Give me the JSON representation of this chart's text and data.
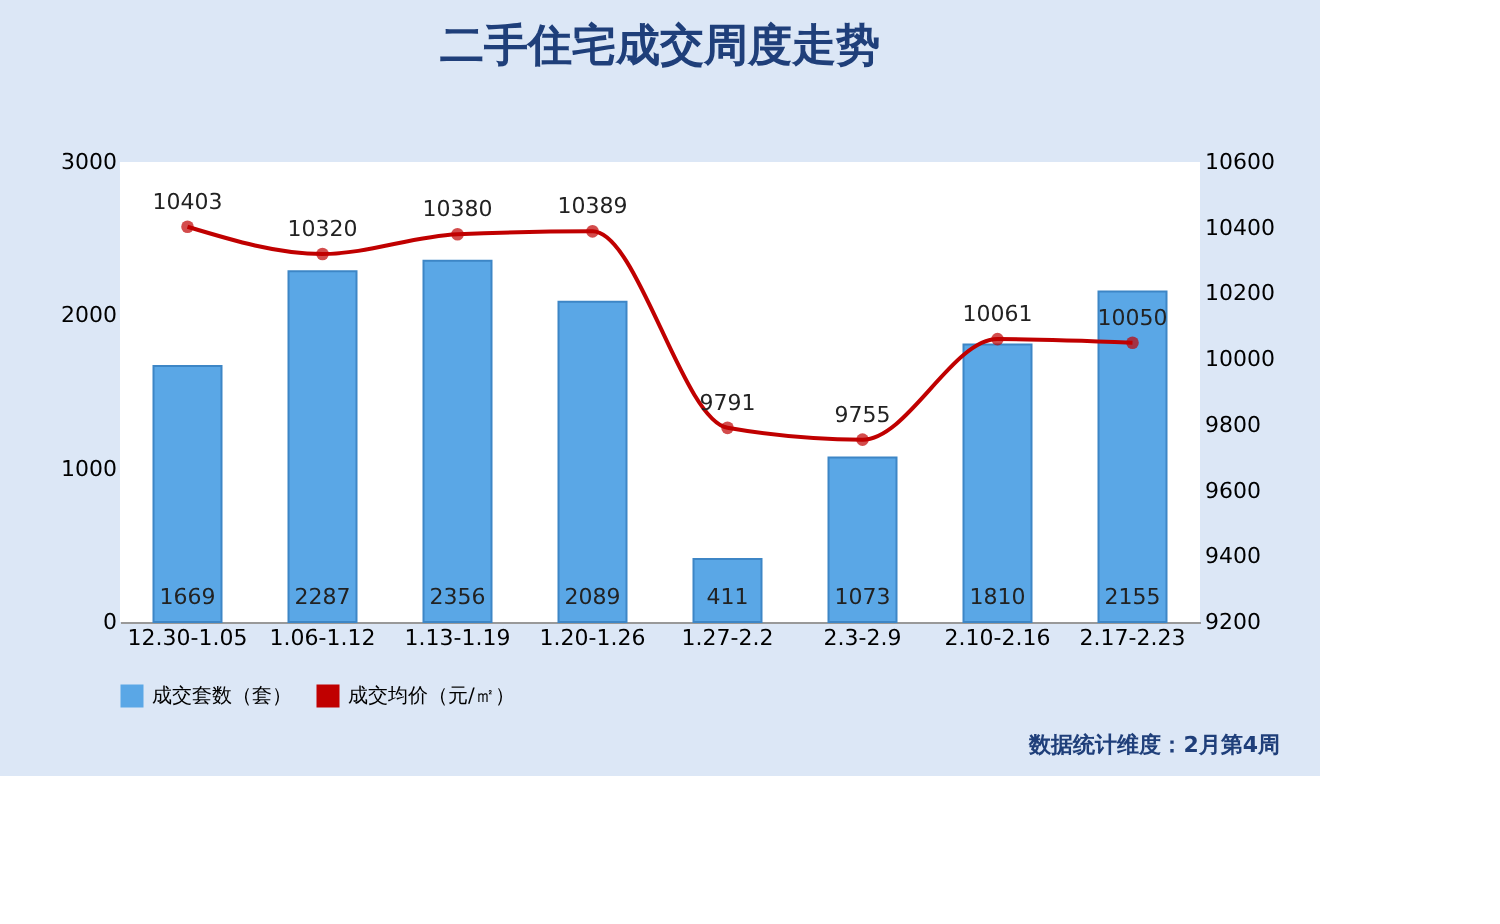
{
  "chart_data": {
    "type": "bar",
    "title": "二手住宅成交周度走势",
    "categories": [
      "12.30-1.05",
      "1.06-1.12",
      "1.13-1.19",
      "1.20-1.26",
      "1.27-2.2",
      "2.3-2.9",
      "2.10-2.16",
      "2.17-2.23"
    ],
    "series": [
      {
        "name": "成交套数（套）",
        "color": "#5aa7e6",
        "values": [
          1669,
          2287,
          2356,
          2089,
          411,
          1073,
          1810,
          2155
        ]
      },
      {
        "name": "成交均价（元/㎡）",
        "color": "#c00000",
        "type": "line",
        "axis": "y2",
        "marker": "circle",
        "values": [
          10403,
          10320,
          10380,
          10389,
          9791,
          9755,
          10061,
          10050
        ]
      }
    ],
    "ylim": [
      0,
      3000
    ],
    "yticks": [
      0,
      1000,
      2000,
      3000
    ],
    "y2lim": [
      9200,
      10600
    ],
    "y2ticks": [
      9200,
      9400,
      9600,
      9800,
      10000,
      10200,
      10400,
      10600
    ],
    "data_labels": true,
    "grid": false,
    "legend": "bottom",
    "annotations": [
      "数据统计维度：2月第4周"
    ]
  }
}
